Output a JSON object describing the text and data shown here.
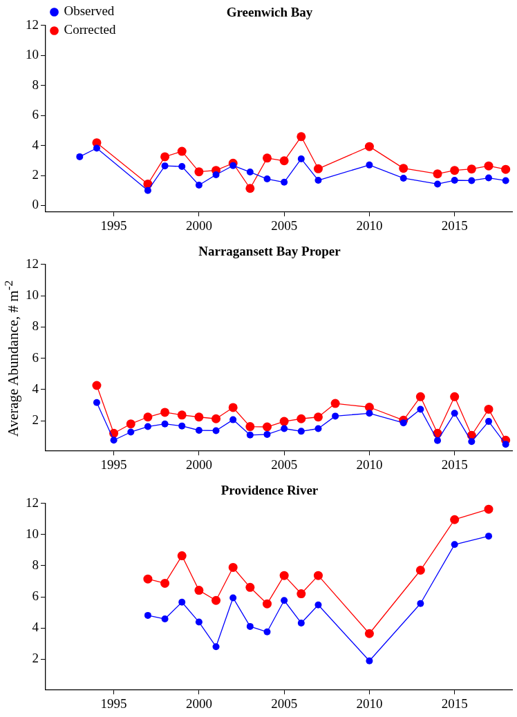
{
  "chart_data": [
    {
      "type": "line",
      "title": "Greenwich Bay",
      "xlim": [
        1991,
        2018.4
      ],
      "xticks": [
        1995,
        2000,
        2005,
        2010,
        2015
      ],
      "ylim": [
        -0.4,
        12
      ],
      "yticks": [
        0,
        2,
        4,
        6,
        8,
        10,
        12
      ],
      "legend": "top left",
      "marker": "circle",
      "line_style": "solid",
      "series": [
        {
          "name": "Observed",
          "color": "#0000ff",
          "x": [
            1993,
            1994,
            1997,
            1998,
            1999,
            2000,
            2001,
            2002,
            2003,
            2004,
            2005,
            2006,
            2007,
            2010,
            2012,
            2014,
            2015,
            2016,
            2017,
            2018
          ],
          "values": [
            3.25,
            3.82,
            1.0,
            2.64,
            2.6,
            1.36,
            2.05,
            2.66,
            2.23,
            1.77,
            1.55,
            3.11,
            1.68,
            2.7,
            1.82,
            1.43,
            1.68,
            1.66,
            1.84,
            1.66
          ]
        },
        {
          "name": "Corrected",
          "color": "#ff0000",
          "x": [
            1994,
            1997,
            1998,
            1999,
            2000,
            2001,
            2002,
            2003,
            2004,
            2005,
            2006,
            2007,
            2010,
            2012,
            2014,
            2015,
            2016,
            2017,
            2018
          ],
          "values": [
            4.18,
            1.43,
            3.25,
            3.61,
            2.25,
            2.34,
            2.82,
            1.14,
            3.16,
            2.98,
            4.59,
            2.45,
            3.93,
            2.48,
            2.11,
            2.34,
            2.43,
            2.64,
            2.41
          ]
        }
      ]
    },
    {
      "type": "line",
      "title": "Narragansett Bay Proper",
      "ylabel": "Average Abundance, # m$^{-2}$",
      "xlim": [
        1991,
        2018.4
      ],
      "xticks": [
        1995,
        2000,
        2005,
        2010,
        2015
      ],
      "ylim": [
        0.1,
        12
      ],
      "yticks": [
        2,
        4,
        6,
        8,
        10,
        12
      ],
      "marker": "circle",
      "line_style": "solid",
      "series": [
        {
          "color": "#0000ff",
          "x": [
            1994,
            1995,
            1996,
            1997,
            1998,
            1999,
            2000,
            2001,
            2002,
            2003,
            2004,
            2005,
            2006,
            2007,
            2008,
            2010,
            2012,
            2013,
            2014,
            2015,
            2016,
            2017,
            2018
          ],
          "values": [
            3.17,
            0.76,
            1.28,
            1.63,
            1.8,
            1.67,
            1.39,
            1.37,
            2.07,
            1.09,
            1.13,
            1.5,
            1.33,
            1.5,
            2.3,
            2.48,
            1.87,
            2.74,
            0.74,
            2.48,
            0.67,
            1.96,
            0.5
          ]
        },
        {
          "color": "#ff0000",
          "x": [
            1994,
            1995,
            1996,
            1997,
            1998,
            1999,
            2000,
            2001,
            2002,
            2003,
            2004,
            2005,
            2006,
            2007,
            2008,
            2010,
            2012,
            2013,
            2014,
            2015,
            2016,
            2017,
            2018
          ],
          "values": [
            4.26,
            1.2,
            1.8,
            2.24,
            2.54,
            2.37,
            2.24,
            2.13,
            2.85,
            1.63,
            1.61,
            1.96,
            2.13,
            2.24,
            3.11,
            2.87,
            2.04,
            3.54,
            1.2,
            3.54,
            1.07,
            2.74,
            0.76
          ]
        }
      ]
    },
    {
      "type": "line",
      "title": "Providence River",
      "xlim": [
        1991,
        2018.4
      ],
      "xticks": [
        1995,
        2000,
        2005,
        2010,
        2015
      ],
      "ylim": [
        0.05,
        12
      ],
      "yticks": [
        2,
        4,
        6,
        8,
        10,
        12
      ],
      "marker": "circle",
      "line_style": "solid",
      "series": [
        {
          "color": "#0000ff",
          "x": [
            1997,
            1998,
            1999,
            2000,
            2001,
            2002,
            2003,
            2004,
            2005,
            2006,
            2007,
            2010,
            2013,
            2015,
            2017
          ],
          "values": [
            4.81,
            4.58,
            5.66,
            4.38,
            2.8,
            5.94,
            4.1,
            3.75,
            5.77,
            4.32,
            5.48,
            1.89,
            5.57,
            9.36,
            9.9
          ]
        },
        {
          "color": "#ff0000",
          "x": [
            1997,
            1998,
            1999,
            2000,
            2001,
            2002,
            2003,
            2004,
            2005,
            2006,
            2007,
            2010,
            2013,
            2015,
            2017
          ],
          "values": [
            7.15,
            6.87,
            8.64,
            6.42,
            5.77,
            7.89,
            6.61,
            5.55,
            7.37,
            6.2,
            7.37,
            3.64,
            7.71,
            10.96,
            11.63
          ]
        }
      ]
    }
  ]
}
